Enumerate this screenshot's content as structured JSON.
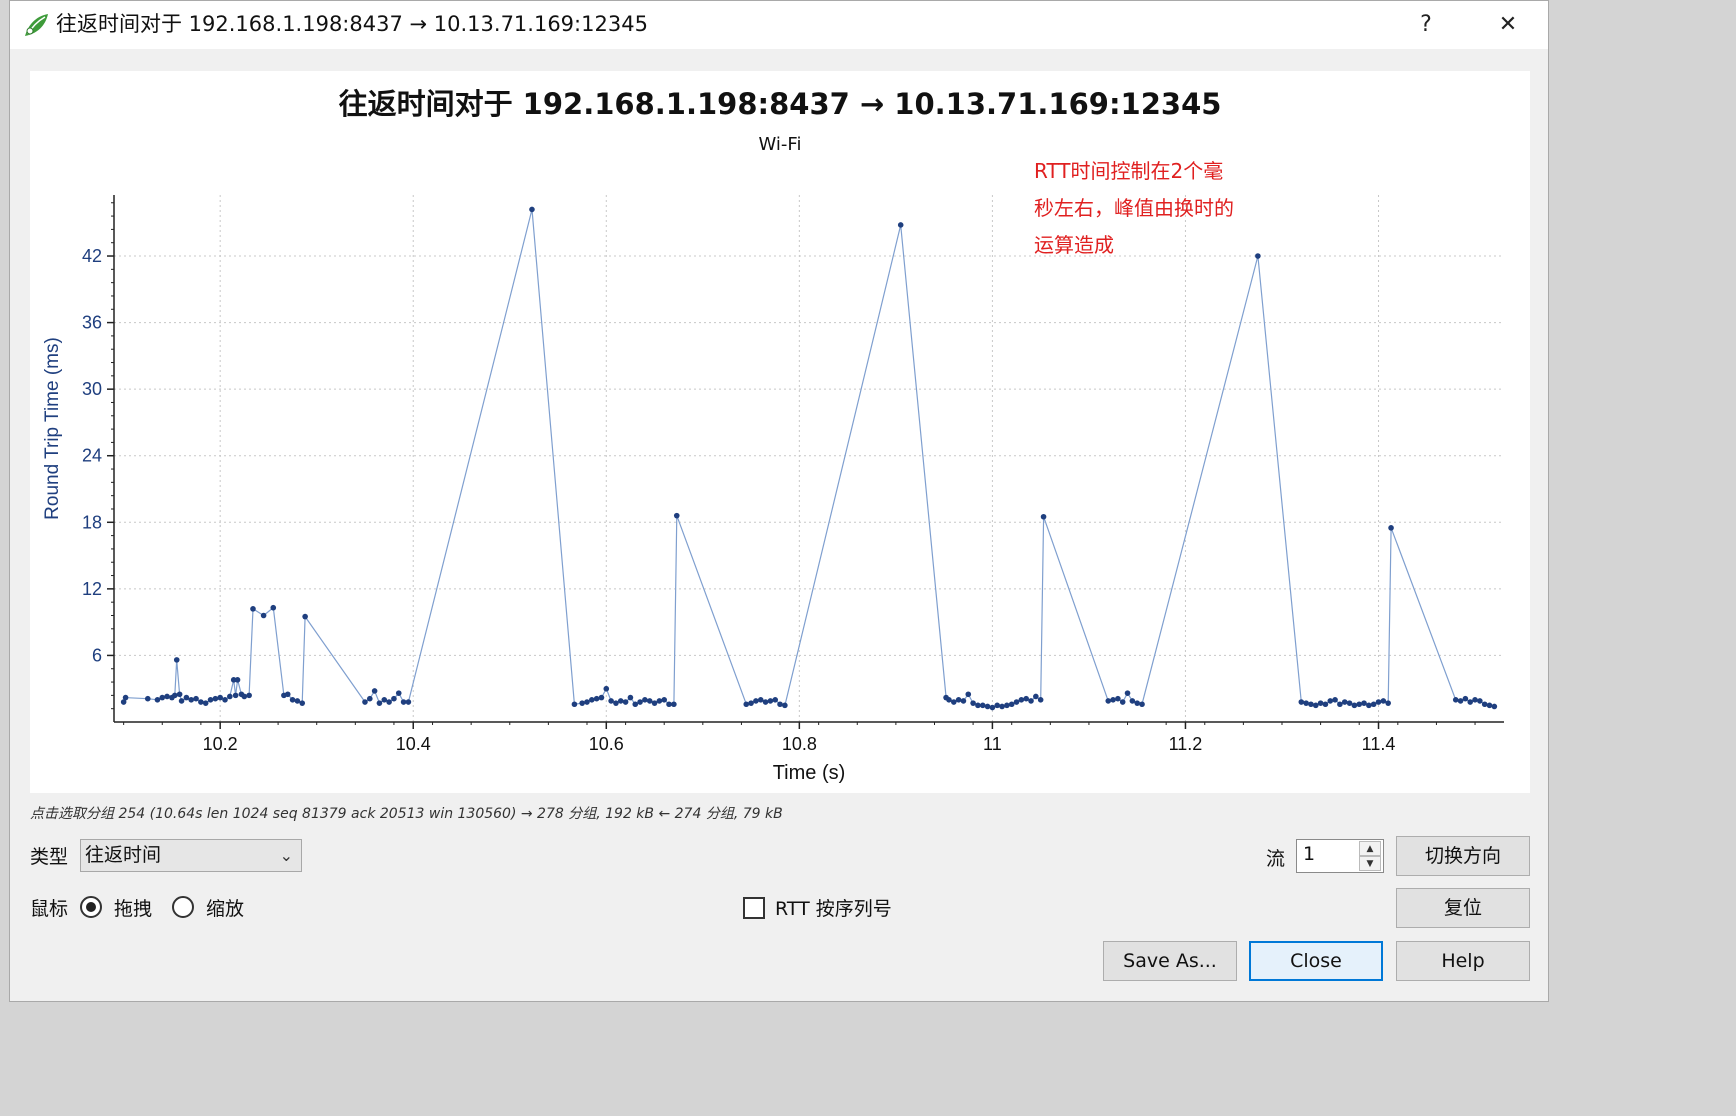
{
  "window": {
    "title": "往返时间对于 192.168.1.198:8437 → 10.13.71.169:12345",
    "help_label": "?",
    "close_label": "✕"
  },
  "plot": {
    "title": "往返时间对于 192.168.1.198:8437 → 10.13.71.169:12345",
    "subtitle": "Wi-Fi",
    "annotation_lines": [
      "RTT时间控制在2个毫",
      "秒左右，峰值由换时的",
      "运算造成"
    ]
  },
  "chart_data": {
    "type": "scatter",
    "title": "往返时间对于 192.168.1.198:8437 → 10.13.71.169:12345",
    "subtitle": "Wi-Fi",
    "xlabel": "Time (s)",
    "ylabel": "Round Trip Time (ms)",
    "xlim": [
      10.09,
      11.53
    ],
    "ylim": [
      0,
      47.5
    ],
    "xticks": [
      10.2,
      10.4,
      10.6,
      10.8,
      11,
      11.2,
      11.4
    ],
    "xtick_labels": [
      "10.2",
      "10.4",
      "10.6",
      "10.8",
      "11",
      "11.2",
      "11.4"
    ],
    "yticks": [
      6,
      12,
      18,
      24,
      30,
      36,
      42
    ],
    "ytick_labels": [
      "6",
      "12",
      "18",
      "24",
      "30",
      "36",
      "42"
    ],
    "grid": true,
    "line_color": "#7f9fcf",
    "marker_color": "#1f3f7f",
    "series": [
      {
        "x": [
          10.1,
          10.102,
          10.125,
          10.135,
          10.14,
          10.145,
          10.15,
          10.153,
          10.155,
          10.158,
          10.16,
          10.165,
          10.17,
          10.175,
          10.18,
          10.185,
          10.19,
          10.195,
          10.2,
          10.205,
          10.21,
          10.214,
          10.216,
          10.218,
          10.222,
          10.225,
          10.23,
          10.234,
          10.245,
          10.255,
          10.266,
          10.27,
          10.275,
          10.28,
          10.285,
          10.288,
          10.35,
          10.355,
          10.36,
          10.365,
          10.37,
          10.375,
          10.38,
          10.385,
          10.39,
          10.395,
          10.523,
          10.567,
          10.575,
          10.58,
          10.585,
          10.59,
          10.595,
          10.6,
          10.605,
          10.61,
          10.615,
          10.62,
          10.625,
          10.63,
          10.635,
          10.64,
          10.645,
          10.65,
          10.655,
          10.66,
          10.665,
          10.67,
          10.673,
          10.745,
          10.75,
          10.755,
          10.76,
          10.765,
          10.77,
          10.775,
          10.78,
          10.785,
          10.905,
          10.952,
          10.955,
          10.96,
          10.965,
          10.97,
          10.975,
          10.98,
          10.985,
          10.99,
          10.995,
          11.0,
          11.005,
          11.01,
          11.015,
          11.02,
          11.025,
          11.03,
          11.035,
          11.04,
          11.045,
          11.05,
          11.053,
          11.12,
          11.125,
          11.13,
          11.135,
          11.14,
          11.145,
          11.15,
          11.155,
          11.275,
          11.32,
          11.325,
          11.33,
          11.335,
          11.34,
          11.345,
          11.35,
          11.355,
          11.36,
          11.365,
          11.37,
          11.375,
          11.38,
          11.385,
          11.39,
          11.395,
          11.4,
          11.405,
          11.41,
          11.413,
          11.48,
          11.485,
          11.49,
          11.495,
          11.5,
          11.505,
          11.51,
          11.515,
          11.52
        ],
        "y": [
          1.8,
          2.2,
          2.1,
          2.0,
          2.2,
          2.3,
          2.2,
          2.4,
          5.6,
          2.5,
          1.9,
          2.2,
          2.0,
          2.1,
          1.8,
          1.7,
          2.0,
          2.1,
          2.2,
          2.0,
          2.3,
          3.8,
          2.4,
          3.8,
          2.5,
          2.3,
          2.4,
          10.2,
          9.6,
          10.3,
          2.4,
          2.5,
          2.0,
          1.9,
          1.7,
          9.5,
          1.8,
          2.1,
          2.8,
          1.7,
          2.0,
          1.8,
          2.1,
          2.6,
          1.8,
          1.8,
          46.2,
          1.6,
          1.7,
          1.8,
          2.0,
          2.1,
          2.2,
          3.0,
          1.9,
          1.7,
          1.9,
          1.8,
          2.2,
          1.6,
          1.8,
          2.0,
          1.9,
          1.7,
          1.9,
          2.0,
          1.6,
          1.6,
          18.6,
          1.6,
          1.7,
          1.9,
          2.0,
          1.8,
          1.9,
          2.0,
          1.6,
          1.5,
          44.8,
          2.2,
          2.0,
          1.8,
          2.0,
          1.9,
          2.5,
          1.7,
          1.5,
          1.5,
          1.4,
          1.3,
          1.5,
          1.4,
          1.5,
          1.6,
          1.8,
          2.0,
          2.1,
          1.9,
          2.3,
          2.0,
          18.5,
          1.9,
          2.0,
          2.1,
          1.8,
          2.6,
          1.9,
          1.7,
          1.6,
          42.0,
          1.8,
          1.7,
          1.6,
          1.5,
          1.7,
          1.6,
          1.9,
          2.0,
          1.6,
          1.8,
          1.7,
          1.5,
          1.6,
          1.7,
          1.5,
          1.6,
          1.8,
          1.9,
          1.7,
          17.5,
          2.0,
          1.9,
          2.1,
          1.8,
          2.0,
          1.9,
          1.6,
          1.5,
          1.4
        ]
      }
    ]
  },
  "status_text": "点击选取分组 254 (10.64s len 1024 seq 81379 ack 20513 win 130560) → 278 分组, 192 kB ← 274 分组, 79 kB",
  "controls": {
    "type_label": "类型",
    "type_value": "往返时间",
    "mouse_label": "鼠标",
    "drag_label": "拖拽",
    "zoom_label": "缩放",
    "mouse_mode": "drag",
    "rtt_seq_label": "RTT 按序列号",
    "rtt_seq_checked": false,
    "stream_label": "流",
    "stream_value": "1",
    "switch_direction_label": "切换方向",
    "reset_label": "复位",
    "save_as_label": "Save As...",
    "close_label": "Close",
    "help_label": "Help"
  }
}
